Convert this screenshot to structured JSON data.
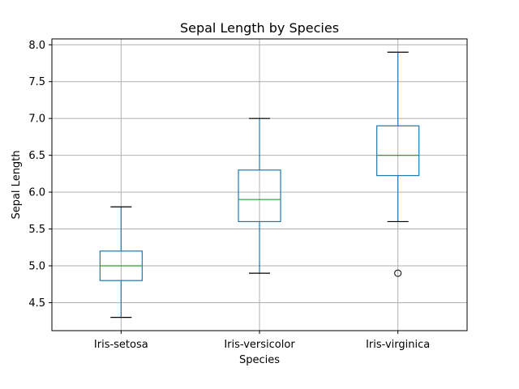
{
  "chart_data": {
    "type": "box",
    "title": "Sepal Length by Species",
    "xlabel": "Species",
    "ylabel": "Sepal Length",
    "ylim": [
      4.12,
      8.08
    ],
    "yticks": [
      "4.5",
      "5.0",
      "5.5",
      "6.0",
      "6.5",
      "7.0",
      "7.5",
      "8.0"
    ],
    "grid": true,
    "colors": {
      "box": "#1f77b4",
      "median": "#2ca02c",
      "grid": "#b0b0b0",
      "cap": "#000000",
      "outlier": "#000000"
    },
    "categories": [
      "Iris-setosa",
      "Iris-versicolor",
      "Iris-virginica"
    ],
    "boxes": [
      {
        "category": "Iris-setosa",
        "whislo": 4.3,
        "q1": 4.8,
        "med": 5.0,
        "q3": 5.2,
        "whishi": 5.8,
        "fliers": []
      },
      {
        "category": "Iris-versicolor",
        "whislo": 4.9,
        "q1": 5.6,
        "med": 5.9,
        "q3": 6.3,
        "whishi": 7.0,
        "fliers": []
      },
      {
        "category": "Iris-virginica",
        "whislo": 5.6,
        "q1": 6.225,
        "med": 6.5,
        "q3": 6.9,
        "whishi": 7.9,
        "fliers": [
          4.9
        ]
      }
    ]
  }
}
